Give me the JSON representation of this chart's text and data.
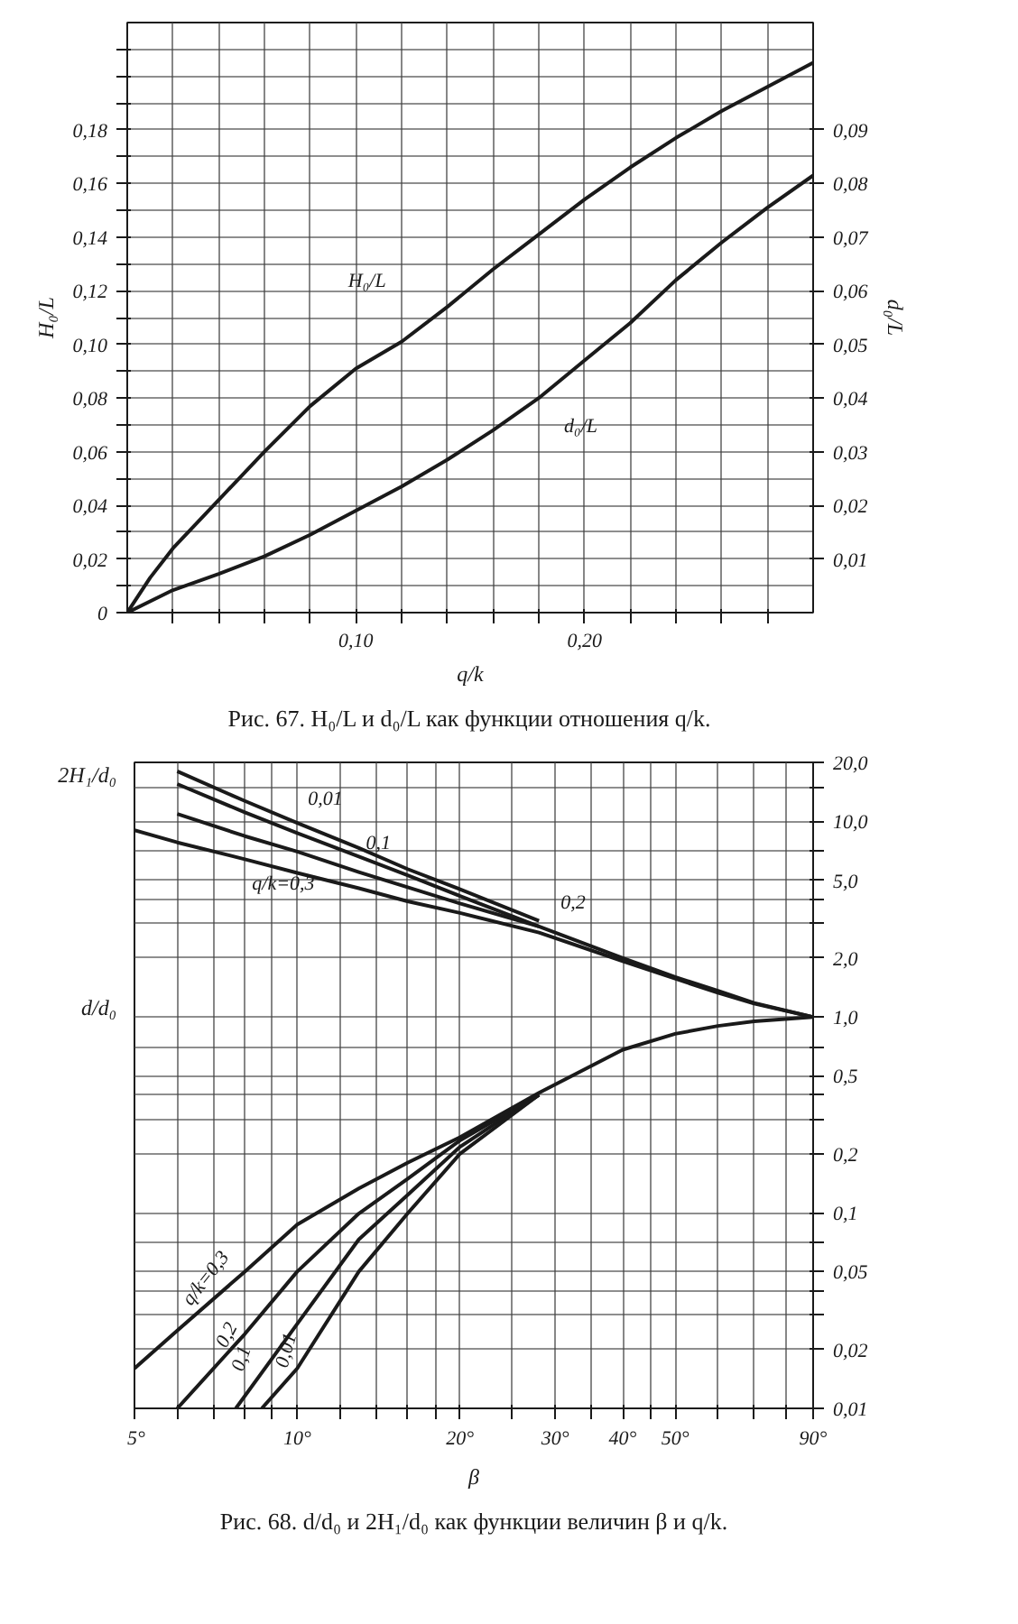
{
  "chart_data": [
    {
      "type": "line",
      "title": "Рис. 67. H₀/L и d₀/L как функции отношения q/k.",
      "xlabel": "q/k",
      "ylabel": "H₀/L",
      "y2label": "d₀/L",
      "grid": true,
      "xlim": [
        0,
        0.3
      ],
      "ylim": [
        0,
        0.22
      ],
      "y2lim": [
        0,
        0.11
      ],
      "xticks": [
        {
          "value": 0.02,
          "label": null
        },
        {
          "value": 0.04,
          "label": null
        },
        {
          "value": 0.06,
          "label": null
        },
        {
          "value": 0.08,
          "label": null
        },
        {
          "value": 0.1,
          "label": "0,10"
        },
        {
          "value": 0.12,
          "label": null
        },
        {
          "value": 0.14,
          "label": null
        },
        {
          "value": 0.16,
          "label": null
        },
        {
          "value": 0.18,
          "label": null
        },
        {
          "value": 0.2,
          "label": "0,20"
        },
        {
          "value": 0.22,
          "label": null
        },
        {
          "value": 0.24,
          "label": null
        },
        {
          "value": 0.26,
          "label": null
        },
        {
          "value": 0.28,
          "label": null
        }
      ],
      "yticks": [
        0,
        {
          "value": 0.01,
          "label": null
        },
        {
          "value": 0.02,
          "label": "0,02"
        },
        {
          "value": 0.03,
          "label": null
        },
        {
          "value": 0.04,
          "label": "0,04"
        },
        {
          "value": 0.05,
          "label": null
        },
        {
          "value": 0.06,
          "label": "0,06"
        },
        {
          "value": 0.07,
          "label": null
        },
        {
          "value": 0.08,
          "label": "0,08"
        },
        {
          "value": 0.09,
          "label": null
        },
        {
          "value": 0.1,
          "label": "0,10"
        },
        {
          "value": 0.11,
          "label": null
        },
        {
          "value": 0.12,
          "label": "0,12"
        },
        {
          "value": 0.13,
          "label": null
        },
        {
          "value": 0.14,
          "label": "0,14"
        },
        {
          "value": 0.15,
          "label": null
        },
        {
          "value": 0.16,
          "label": "0,16"
        },
        {
          "value": 0.17,
          "label": null
        },
        {
          "value": 0.18,
          "label": "0,18"
        },
        {
          "value": 0.19,
          "label": null
        },
        {
          "value": 0.2,
          "label": null
        },
        {
          "value": 0.21,
          "label": null
        }
      ],
      "y2ticks": [
        {
          "value": 0.01,
          "label": "0,01"
        },
        {
          "value": 0.02,
          "label": "0,02"
        },
        {
          "value": 0.03,
          "label": "0,03"
        },
        {
          "value": 0.04,
          "label": "0,04"
        },
        {
          "value": 0.05,
          "label": "0,05"
        },
        {
          "value": 0.06,
          "label": "0,06"
        },
        {
          "value": 0.07,
          "label": "0,07"
        },
        {
          "value": 0.08,
          "label": "0,08"
        },
        {
          "value": 0.09,
          "label": "0,09"
        }
      ],
      "series": [
        {
          "name": "H₀/L",
          "color": "#1a1a1a",
          "x": [
            0,
            0.01,
            0.02,
            0.04,
            0.06,
            0.08,
            0.1,
            0.12,
            0.14,
            0.16,
            0.18,
            0.2,
            0.22,
            0.24,
            0.26,
            0.28,
            0.3
          ],
          "values": [
            0,
            0.013,
            0.024,
            0.042,
            0.06,
            0.077,
            0.091,
            0.101,
            0.114,
            0.128,
            0.141,
            0.154,
            0.166,
            0.177,
            0.187,
            0.196,
            0.205
          ]
        },
        {
          "name": "d₀/L",
          "color": "#1a1a1a",
          "axis": "y2",
          "x": [
            0,
            0.02,
            0.04,
            0.06,
            0.08,
            0.1,
            0.12,
            0.14,
            0.16,
            0.18,
            0.2,
            0.22,
            0.24,
            0.26,
            0.28,
            0.3
          ],
          "values": [
            0,
            0.0042,
            0.0072,
            0.0105,
            0.0145,
            0.019,
            0.0235,
            0.0285,
            0.034,
            0.04,
            0.047,
            0.054,
            0.062,
            0.069,
            0.0755,
            0.0815
          ]
        }
      ]
    },
    {
      "type": "line",
      "title": "Рис. 68. d/d₀ и 2H₁/d₀ как функции величин β и q/k.",
      "xlabel": "β",
      "ylabel": "2H₁/d₀",
      "annotations": [
        "d/d₀"
      ],
      "log": "xy",
      "grid": true,
      "xlim": [
        5,
        90
      ],
      "ylim": [
        0.01,
        20
      ],
      "xticks": [
        {
          "value": 5,
          "label": "5°"
        },
        {
          "value": 6,
          "label": null
        },
        {
          "value": 7,
          "label": null
        },
        {
          "value": 8,
          "label": null
        },
        {
          "value": 9,
          "label": null
        },
        {
          "value": 10,
          "label": "10°"
        },
        {
          "value": 12,
          "label": null
        },
        {
          "value": 14,
          "label": null
        },
        {
          "value": 16,
          "label": null
        },
        {
          "value": 18,
          "label": null
        },
        {
          "value": 20,
          "label": "20°"
        },
        {
          "value": 25,
          "label": null
        },
        {
          "value": 30,
          "label": "30°"
        },
        {
          "value": 35,
          "label": null
        },
        {
          "value": 40,
          "label": "40°"
        },
        {
          "value": 45,
          "label": null
        },
        {
          "value": 50,
          "label": "50°"
        },
        {
          "value": 60,
          "label": null
        },
        {
          "value": 70,
          "label": null
        },
        {
          "value": 80,
          "label": null
        },
        {
          "value": 90,
          "label": "90°"
        }
      ],
      "yticks": [
        {
          "value": 0.01,
          "label": "0,01"
        },
        {
          "value": 0.02,
          "label": "0,02"
        },
        {
          "value": 0.03,
          "label": null
        },
        {
          "value": 0.04,
          "label": null
        },
        {
          "value": 0.05,
          "label": "0,05"
        },
        {
          "value": 0.07,
          "label": null
        },
        {
          "value": 0.1,
          "label": "0,1"
        },
        {
          "value": 0.2,
          "label": "0,2"
        },
        {
          "value": 0.3,
          "label": null
        },
        {
          "value": 0.4,
          "label": null
        },
        {
          "value": 0.5,
          "label": "0,5"
        },
        {
          "value": 0.7,
          "label": null
        },
        {
          "value": 1,
          "label": "1,0"
        },
        {
          "value": 2,
          "label": "2,0"
        },
        {
          "value": 3,
          "label": null
        },
        {
          "value": 4,
          "label": null
        },
        {
          "value": 5,
          "label": "5,0"
        },
        {
          "value": 7,
          "label": null
        },
        {
          "value": 10,
          "label": "10,0"
        },
        {
          "value": 15,
          "label": null
        },
        {
          "value": 20,
          "label": "20,0"
        }
      ],
      "series": [
        {
          "name": "0,01",
          "color": "#1a1a1a",
          "x": [
            6,
            8,
            10,
            13,
            16,
            20,
            28
          ],
          "values": [
            18,
            12.7,
            9.8,
            7.3,
            5.7,
            4.5,
            3.1
          ]
        },
        {
          "name": "0,1",
          "color": "#1a1a1a",
          "x": [
            6,
            8,
            10,
            13,
            16,
            20,
            28
          ],
          "values": [
            15.5,
            11.1,
            8.7,
            6.6,
            5.3,
            4.15,
            2.9
          ]
        },
        {
          "name": "0,2",
          "color": "#1a1a1a",
          "x": [
            6,
            8,
            10,
            13,
            16,
            20,
            28,
            40,
            50,
            60,
            70,
            90
          ],
          "values": [
            10.9,
            8.4,
            7.0,
            5.5,
            4.6,
            3.8,
            2.9,
            2.0,
            1.6,
            1.36,
            1.18,
            1.0
          ]
        },
        {
          "name": "q/k=0,3",
          "color": "#1a1a1a",
          "x": [
            5,
            6,
            8,
            10,
            13,
            16,
            20,
            28,
            40,
            50,
            60,
            70,
            90
          ],
          "values": [
            9.0,
            7.8,
            6.4,
            5.45,
            4.55,
            3.9,
            3.4,
            2.7,
            1.93,
            1.57,
            1.33,
            1.17,
            1.0
          ]
        },
        {
          "name": "q/k=0,3",
          "color": "#1a1a1a",
          "x": [
            5,
            6,
            8,
            10,
            13,
            16,
            20,
            28,
            40,
            50,
            60,
            70,
            90
          ],
          "values": [
            0.016,
            0.025,
            0.05,
            0.087,
            0.133,
            0.18,
            0.243,
            0.41,
            0.68,
            0.82,
            0.9,
            0.95,
            1.0
          ]
        },
        {
          "name": "0,2",
          "color": "#1a1a1a",
          "x": [
            6,
            8,
            10,
            13,
            16,
            20,
            28
          ],
          "values": [
            0.01,
            0.024,
            0.05,
            0.099,
            0.149,
            0.234,
            0.4
          ]
        },
        {
          "name": "0,1",
          "color": "#1a1a1a",
          "x": [
            7.7,
            10,
            13,
            16,
            20,
            28
          ],
          "values": [
            0.01,
            0.027,
            0.073,
            0.123,
            0.217,
            0.4
          ]
        },
        {
          "name": "0,01",
          "color": "#1a1a1a",
          "x": [
            8.6,
            10,
            13,
            16,
            20,
            28
          ],
          "values": [
            0.01,
            0.016,
            0.05,
            0.099,
            0.2,
            0.4
          ]
        }
      ]
    }
  ]
}
